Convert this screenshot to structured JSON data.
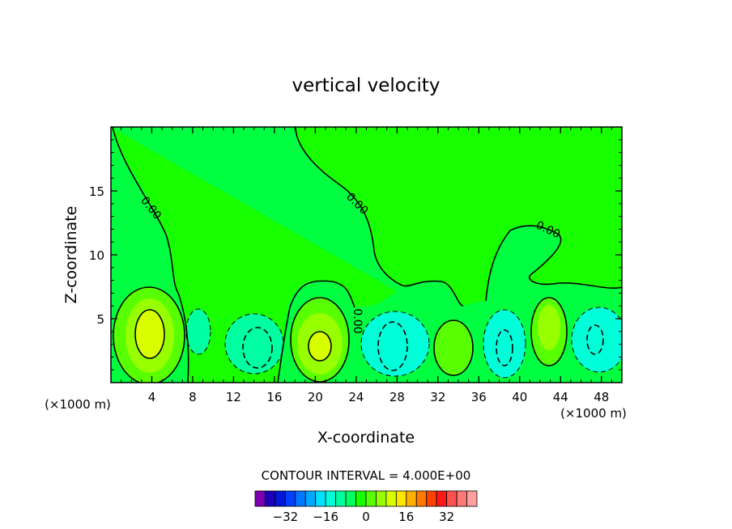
{
  "chart_data": {
    "type": "heatmap",
    "title": "vertical velocity",
    "xlabel": "X-coordinate",
    "ylabel": "Z-coordinate",
    "x_unit": "(×1000 m)",
    "y_unit": "(×1000 m)",
    "xlim": [
      0,
      50
    ],
    "ylim": [
      0,
      20
    ],
    "x_ticks": [
      "4",
      "8",
      "12",
      "16",
      "20",
      "24",
      "28",
      "32",
      "36",
      "40",
      "44",
      "48"
    ],
    "y_ticks": [
      "5",
      "10",
      "15"
    ],
    "contour_interval_label": "CONTOUR INTERVAL = 4.000E+00",
    "contour_interval": 4,
    "contour_labels": [
      "0.00",
      "0.00",
      "0.00",
      "0.00",
      "0.00"
    ],
    "colorbar": {
      "tick_labels": [
        "−32",
        "−16",
        "0",
        "16",
        "32"
      ],
      "tick_values": [
        -32,
        -16,
        0,
        16,
        32
      ],
      "colors": [
        "#7a00b0",
        "#1a00b8",
        "#0018d8",
        "#0040ff",
        "#0078ff",
        "#00a8ff",
        "#00e0ff",
        "#00ffd8",
        "#00ffa0",
        "#00ff60",
        "#18ff00",
        "#58ff00",
        "#98ff00",
        "#d8ff00",
        "#ffe600",
        "#ffb000",
        "#ff7800",
        "#ff4000",
        "#ff1818",
        "#ff5050",
        "#ff7878",
        "#ffa0a0"
      ]
    },
    "cells": [
      {
        "x": 4,
        "z": 3.5,
        "value": 12
      },
      {
        "x": 20.5,
        "z": 3,
        "value": 12
      },
      {
        "x": 33,
        "z": 3,
        "value": 4
      },
      {
        "x": 43,
        "z": 4,
        "value": 8
      },
      {
        "x": 14.5,
        "z": 2.5,
        "value": -4
      },
      {
        "x": 28,
        "z": 2.5,
        "value": -4
      },
      {
        "x": 38.5,
        "z": 2.5,
        "value": -4
      },
      {
        "x": 48,
        "z": 3,
        "value": -4
      }
    ]
  }
}
